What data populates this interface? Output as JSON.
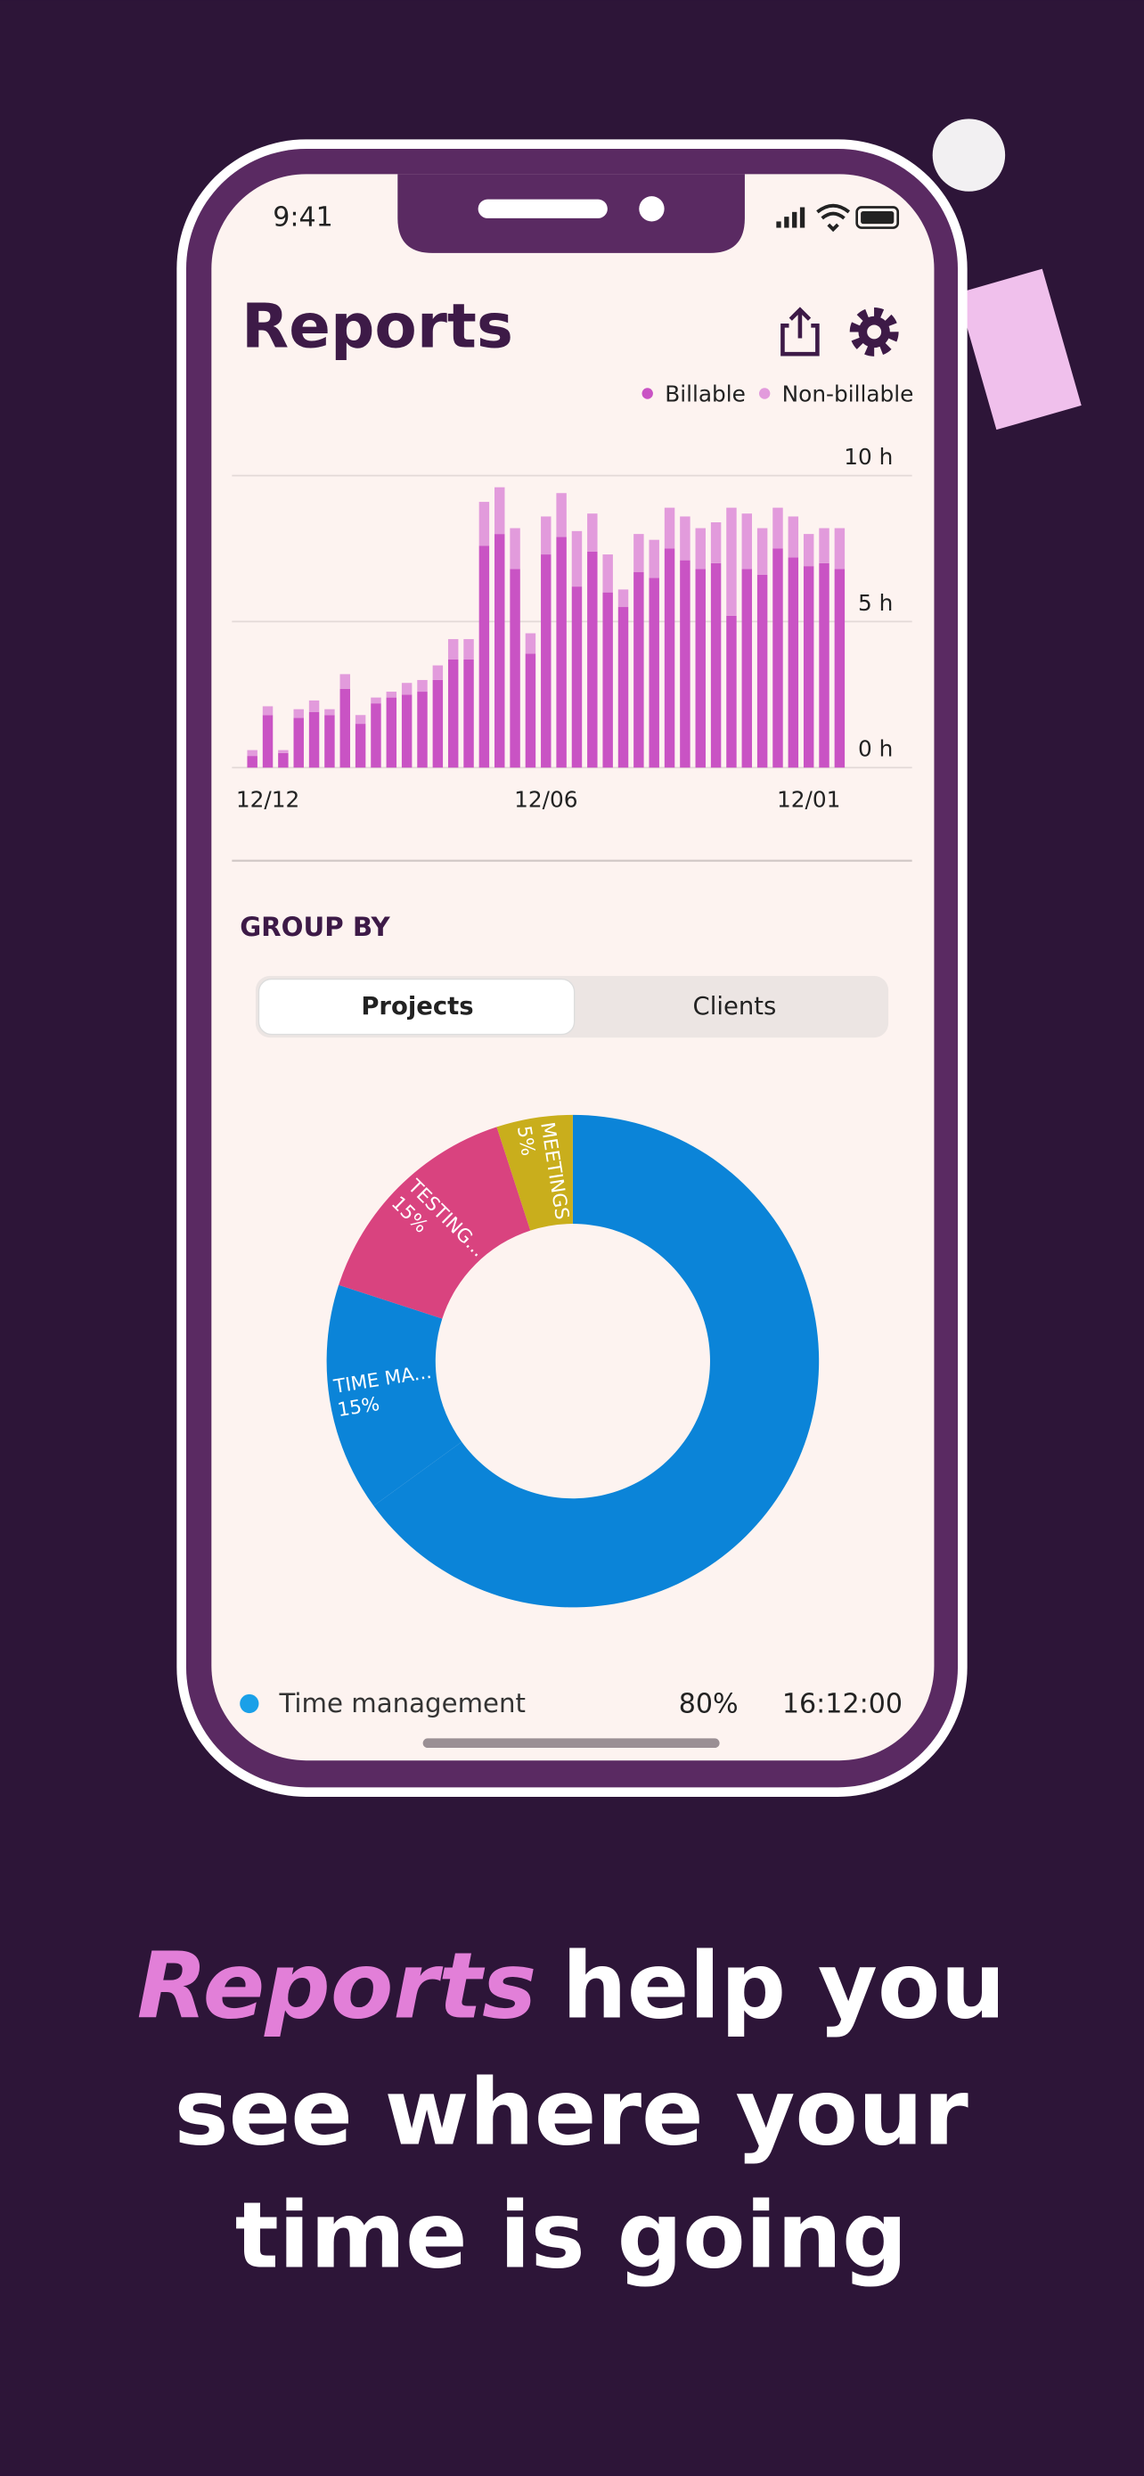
{
  "status_bar": {
    "time": "9:41"
  },
  "header": {
    "title": "Reports"
  },
  "chart_data": [
    {
      "type": "bar",
      "stacked": true,
      "y_axis_side": "right",
      "grid": true,
      "legend": "top-right",
      "categories": [
        null,
        "12/12",
        null,
        null,
        null,
        null,
        null,
        null,
        null,
        null,
        null,
        null,
        null,
        null,
        null,
        null,
        null,
        null,
        null,
        "12/06",
        null,
        null,
        null,
        null,
        null,
        null,
        null,
        null,
        null,
        null,
        null,
        null,
        null,
        null,
        null,
        null,
        "12/01",
        null,
        null
      ],
      "series": [
        {
          "name": "Billable",
          "color": "#c953c4",
          "values": [
            0.4,
            1.8,
            0.5,
            1.7,
            1.9,
            1.8,
            2.7,
            1.5,
            2.2,
            2.4,
            2.5,
            2.6,
            3.0,
            3.7,
            3.7,
            7.6,
            8.0,
            6.8,
            3.9,
            7.3,
            7.9,
            6.2,
            7.4,
            6.0,
            5.5,
            6.7,
            6.5,
            7.5,
            7.1,
            6.8,
            7.0,
            5.2,
            6.8,
            6.6,
            7.5,
            7.2,
            6.9,
            7.0,
            6.8
          ]
        },
        {
          "name": "Non-billable",
          "color": "#e29bdc",
          "values": [
            0.2,
            0.3,
            0.1,
            0.3,
            0.4,
            0.2,
            0.5,
            0.3,
            0.2,
            0.2,
            0.4,
            0.4,
            0.5,
            0.7,
            0.7,
            1.5,
            1.6,
            1.4,
            0.7,
            1.3,
            1.5,
            1.9,
            1.3,
            1.3,
            0.6,
            1.3,
            1.3,
            1.4,
            1.5,
            1.4,
            1.4,
            3.7,
            1.9,
            1.6,
            1.4,
            1.4,
            1.1,
            1.2,
            1.4
          ]
        }
      ],
      "ylim": [
        0,
        10
      ],
      "yticks": [
        {
          "value": 0,
          "label": "0 h"
        },
        {
          "value": 5,
          "label": "5 h"
        },
        {
          "value": 10,
          "label": "10 h"
        }
      ]
    },
    {
      "type": "pie",
      "donut": true,
      "categories": [
        null,
        "TIME MA...",
        "TESTING...",
        "MEETINGS"
      ],
      "values": [
        65,
        15,
        15,
        5
      ],
      "value_labels": [
        null,
        "15%",
        "15%",
        "5%"
      ],
      "colors": [
        "#0b84d8",
        "#0b84d8",
        "#d9437f",
        "#c9ae1c"
      ]
    }
  ],
  "group_by": {
    "label": "GROUP BY",
    "options": [
      "Projects",
      "Clients"
    ],
    "selected": 0
  },
  "summary_row": {
    "name": "Time management",
    "percent": "80%",
    "duration": "16:12:00",
    "color": "#1aa0e8"
  },
  "tagline": {
    "highlight": "Reports",
    "rest": "help you",
    "lines": [
      "see where your",
      "time is going"
    ]
  }
}
